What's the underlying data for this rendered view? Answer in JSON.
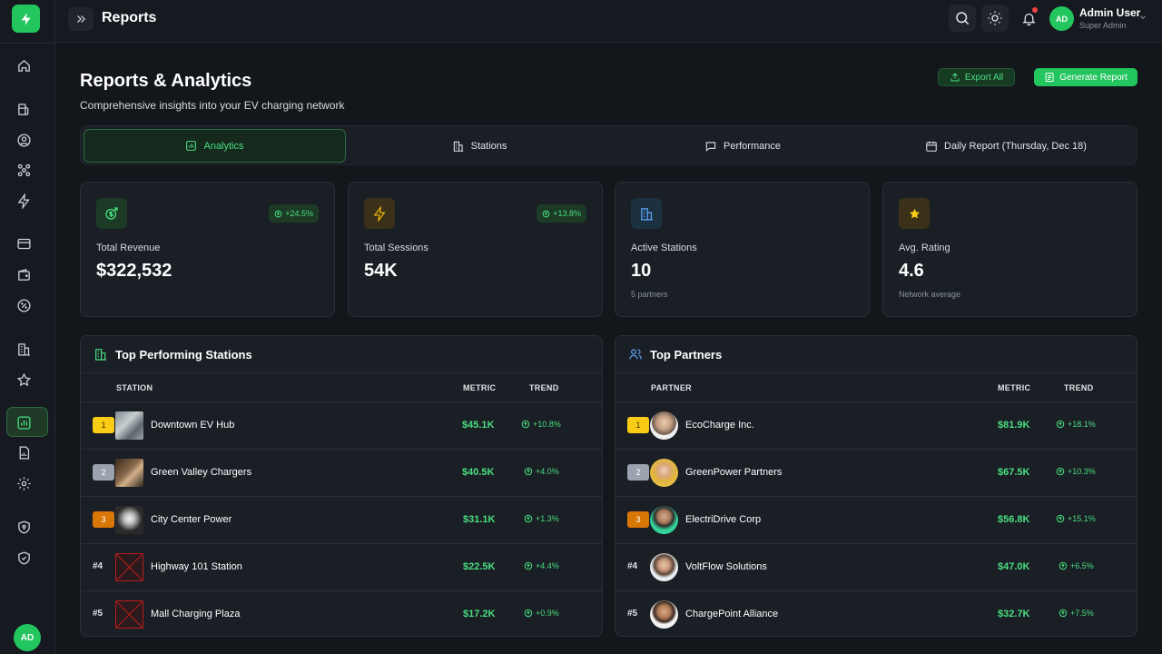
{
  "header": {
    "title": "Reports",
    "user_initials": "AD",
    "user_name": "Admin User",
    "user_role": "Super Admin"
  },
  "sidebar": {
    "avatar_initials": "AD",
    "items": [
      "home-icon",
      "fuel-pump-icon",
      "user-circle-icon",
      "network-icon",
      "lightning-icon",
      "card-icon",
      "wallet-icon",
      "badge-percent-icon",
      "building-icon",
      "star-icon",
      "chart-icon",
      "report-icon",
      "settings-icon",
      "shield-lock-icon",
      "shield-check-icon"
    ]
  },
  "page": {
    "title": "Reports & Analytics",
    "subtitle": "Comprehensive insights into your EV charging network",
    "export_label": "Export All",
    "generate_label": "Generate Report"
  },
  "tabs": [
    {
      "label": "Analytics",
      "icon": "bar-chart-icon",
      "active": true
    },
    {
      "label": "Stations",
      "icon": "building-icon",
      "active": false
    },
    {
      "label": "Performance",
      "icon": "speech-bubble-icon",
      "active": false
    },
    {
      "label": "Daily Report (Thursday, Dec 18)",
      "icon": "calendar-icon",
      "active": false
    }
  ],
  "stats": [
    {
      "label": "Total Revenue",
      "value": "$322,532",
      "change": "+24.5%",
      "note": "",
      "icon": "money-icon",
      "accent": "#22c55e"
    },
    {
      "label": "Total Sessions",
      "value": "54K",
      "change": "+13.8%",
      "note": "",
      "icon": "lightning-icon",
      "accent": "#eab308"
    },
    {
      "label": "Active Stations",
      "value": "10",
      "change": "",
      "note": "5 partners",
      "icon": "station-icon",
      "accent": "#3b82f6"
    },
    {
      "label": "Avg. Rating",
      "value": "4.6",
      "change": "",
      "note": "Network average",
      "icon": "star-icon",
      "accent": "#facc15"
    }
  ],
  "stations_panel": {
    "title": "Top Performing Stations",
    "col_name": "STATION",
    "col_metric": "METRIC",
    "col_trend": "TREND",
    "rows": [
      {
        "rank": "1",
        "name": "Downtown EV Hub",
        "metric": "$45.1K",
        "trend": "+10.8%"
      },
      {
        "rank": "2",
        "name": "Green Valley Chargers",
        "metric": "$40.5K",
        "trend": "+4.0%"
      },
      {
        "rank": "3",
        "name": "City Center Power",
        "metric": "$31.1K",
        "trend": "+1.3%"
      },
      {
        "rank": "#4",
        "name": "Highway 101 Station",
        "metric": "$22.5K",
        "trend": "+4.4%"
      },
      {
        "rank": "#5",
        "name": "Mall Charging Plaza",
        "metric": "$17.2K",
        "trend": "+0.9%"
      }
    ]
  },
  "partners_panel": {
    "title": "Top Partners",
    "col_name": "PARTNER",
    "col_metric": "METRIC",
    "col_trend": "TREND",
    "rows": [
      {
        "rank": "1",
        "name": "EcoCharge Inc.",
        "metric": "$81.9K",
        "trend": "+18.1%"
      },
      {
        "rank": "2",
        "name": "GreenPower Partners",
        "metric": "$67.5K",
        "trend": "+10.3%"
      },
      {
        "rank": "3",
        "name": "ElectriDrive Corp",
        "metric": "$56.8K",
        "trend": "+15.1%"
      },
      {
        "rank": "#4",
        "name": "VoltFlow Solutions",
        "metric": "$47.0K",
        "trend": "+6.5%"
      },
      {
        "rank": "#5",
        "name": "ChargePoint Alliance",
        "metric": "$32.7K",
        "trend": "+7.5%"
      }
    ]
  },
  "colors": {
    "accent": "#22c55e",
    "rank_gold": "#facc15",
    "rank_silver": "#9ca3af",
    "rank_bronze": "#d97706"
  }
}
